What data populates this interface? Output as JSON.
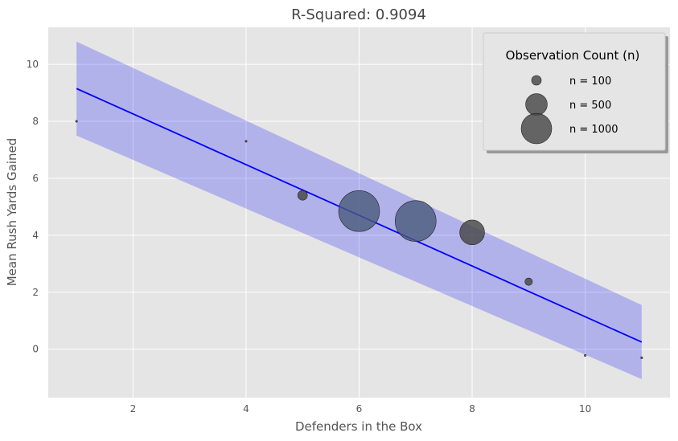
{
  "chart_data": {
    "type": "scatter",
    "title": "R-Squared: 0.9094",
    "xlabel": "Defenders in the Box",
    "ylabel": "Mean Rush Yards Gained",
    "xlim": [
      0.5,
      11.5
    ],
    "ylim": [
      -1.7,
      11.3
    ],
    "xticks": [
      2,
      4,
      6,
      8,
      10
    ],
    "yticks": [
      0,
      2,
      4,
      6,
      8,
      10
    ],
    "grid": true,
    "points": [
      {
        "x": 1,
        "y": 8.0,
        "n": 1,
        "color": "#444444"
      },
      {
        "x": 4,
        "y": 7.3,
        "n": 4,
        "color": "#444444"
      },
      {
        "x": 5,
        "y": 5.4,
        "n": 100,
        "color": "#444444"
      },
      {
        "x": 6,
        "y": 4.85,
        "n": 1800,
        "color": "#4a5a7a"
      },
      {
        "x": 7,
        "y": 4.5,
        "n": 1800,
        "color": "#4a5a7a"
      },
      {
        "x": 8,
        "y": 4.1,
        "n": 660,
        "color": "#444444"
      },
      {
        "x": 9,
        "y": 2.37,
        "n": 60,
        "color": "#444444"
      },
      {
        "x": 10,
        "y": -0.22,
        "n": 3,
        "color": "#444444"
      },
      {
        "x": 11,
        "y": -0.3,
        "n": 2,
        "color": "#444444"
      }
    ],
    "fit_line": {
      "x": [
        1,
        11
      ],
      "y": [
        9.15,
        0.25
      ],
      "color": "#0000ff"
    },
    "confidence_band": {
      "x": [
        1,
        11
      ],
      "lower": [
        7.5,
        -1.05
      ],
      "upper": [
        10.8,
        1.55
      ],
      "color": "#0000ff",
      "opacity": 0.22
    },
    "legend": {
      "title": "Observation Count (n)",
      "position": "top-right",
      "entries": [
        {
          "label": "n = 100",
          "n": 100
        },
        {
          "label": "n = 500",
          "n": 500
        },
        {
          "label": "n = 1000",
          "n": 1000
        }
      ]
    },
    "colors": {
      "plot_background": "#e5e5e5",
      "grid": "#ffffff",
      "marker_default": "#444444"
    }
  }
}
